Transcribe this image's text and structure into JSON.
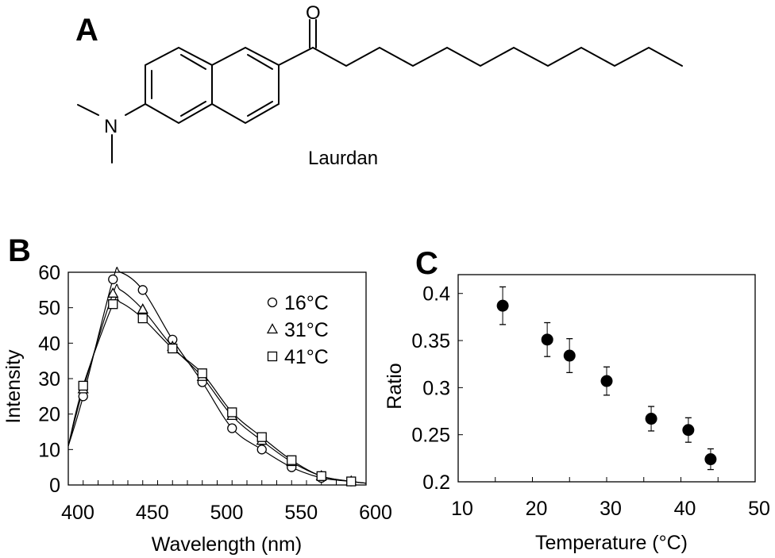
{
  "panels": {
    "a": {
      "label": "A",
      "molecule_name": "Laurdan",
      "atoms": {
        "oxygen": "O",
        "nitrogen": "N"
      }
    },
    "b": {
      "label": "B"
    },
    "c": {
      "label": "C"
    }
  },
  "colors": {
    "ink": "#000000",
    "axis": "#333333",
    "errorbar": "#555555"
  },
  "chart_data": [
    {
      "id": "B",
      "type": "line",
      "title": "",
      "xlabel": "Wavelength (nm)",
      "ylabel": "Intensity",
      "xlim": [
        400,
        600
      ],
      "ylim": [
        0,
        60
      ],
      "xticks": [
        400,
        450,
        500,
        550,
        600
      ],
      "xtick_labels": [
        "400",
        "450",
        "500",
        "550",
        "600"
      ],
      "yticks": [
        0,
        10,
        20,
        30,
        40,
        50,
        60
      ],
      "ytick_labels": [
        "0",
        "10",
        "20",
        "30",
        "40",
        "50",
        "60"
      ],
      "grid": false,
      "legend_position": "upper right",
      "x": [
        410,
        430,
        450,
        470,
        490,
        510,
        530,
        550,
        570,
        590
      ],
      "series": [
        {
          "name": "16°C",
          "marker": "circle",
          "values": [
            25,
            58,
            55,
            41,
            29,
            16,
            10,
            5,
            2,
            1
          ]
        },
        {
          "name": "31°C",
          "marker": "triangle",
          "values": [
            27,
            54,
            49.5,
            39,
            30.5,
            19.5,
            12.5,
            6.5,
            2.5,
            1
          ]
        },
        {
          "name": "41°C",
          "marker": "square",
          "values": [
            28,
            51,
            47,
            38.5,
            31.5,
            20.5,
            13.5,
            7,
            2.5,
            1
          ]
        }
      ],
      "curve_start": {
        "x": 400,
        "values": [
          11,
          11,
          11
        ]
      },
      "curve_peaks": {
        "16°C": [
          435,
          60
        ],
        "31°C": [
          435,
          55
        ],
        "41°C": [
          435,
          51.5
        ]
      }
    },
    {
      "id": "C",
      "type": "scatter",
      "title": "",
      "xlabel": "Temperature (°C)",
      "ylabel": "Ratio",
      "xlim": [
        10,
        50
      ],
      "ylim": [
        0.2,
        0.42
      ],
      "xticks": [
        10,
        20,
        30,
        40,
        50
      ],
      "xtick_labels": [
        "10",
        "20",
        "30",
        "40",
        "50"
      ],
      "yticks": [
        0.2,
        0.25,
        0.3,
        0.35,
        0.4
      ],
      "ytick_labels": [
        "0.2",
        "0.25",
        "0.3",
        "0.35",
        "0.4"
      ],
      "grid": false,
      "x": [
        16,
        22,
        25,
        30,
        36,
        41,
        44
      ],
      "values": [
        0.387,
        0.351,
        0.334,
        0.307,
        0.267,
        0.255,
        0.224
      ],
      "errors": [
        0.02,
        0.018,
        0.018,
        0.015,
        0.013,
        0.013,
        0.011
      ]
    }
  ]
}
